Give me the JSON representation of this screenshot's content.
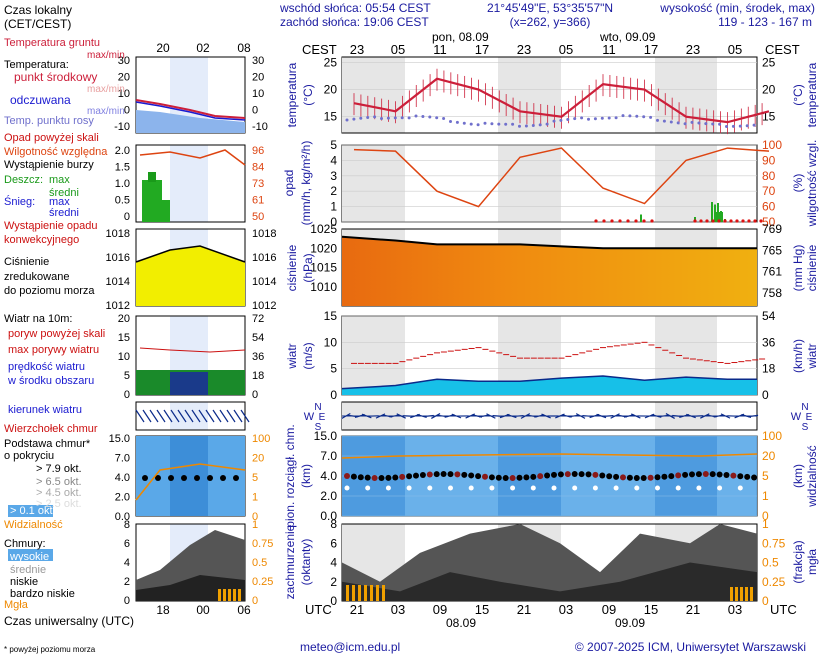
{
  "header": {
    "sunrise": "wschód słońca: 05:54 CEST",
    "sunset": "zachód słońca: 19:06 CEST",
    "coords": "21°45'49\"E, 53°35'57\"N",
    "grid": "(x=262, y=366)",
    "elev_label": "wysokość (min, środek, max)",
    "elev_value": "119 - 123 - 167 m"
  },
  "legend": {
    "local_time": "Czas lokalny",
    "local_tz": "(CET/CEST)",
    "ground_temp": "Temperatura gruntu",
    "maxmin": "max/min",
    "temp": "Temperatura:",
    "mid": "punkt środkowy",
    "maxmin2": "max/min",
    "feel": "odczuwana",
    "maxmin3": "max/min",
    "dew": "Temp. punktu rosy",
    "precip_above": "Opad powyżej skali",
    "humidity": "Wilgotność względna",
    "storm": "Wystąpienie burzy",
    "rain": "Deszcz:",
    "rain_max": "max",
    "rain_avg": "średni",
    "snow": "Śnieg:",
    "snow_max": "max",
    "snow_avg": "średni",
    "conv": "Wystąpienie opadu",
    "conv2": "konwekcyjnego",
    "pres1": "Ciśnienie",
    "pres2": "zredukowane",
    "pres3": "do poziomu morza",
    "wind": "Wiatr na 10m:",
    "gust_above": "poryw powyżej skali",
    "gust_max": "max porywy wiatru",
    "speed1": "prędkość wiatru",
    "speed2": "w środku obszaru",
    "dir": "kierunek wiatru",
    "ctop": "Wierzchołek chmur",
    "cbase": "Podstawa chmur*",
    "cbase2": "o pokryciu",
    "o79": "> 7.9 okt.",
    "o65": "> 6.5 okt.",
    "o45": "> 4.5 okt.",
    "o25": "> 2.5 okt.",
    "o01": "> 0.1 okt.",
    "vis": "Widzialność",
    "clouds": "Chmury:",
    "high": "wysokie",
    "medium": "średnie",
    "low": "niskie",
    "vlow": "bardzo niskie",
    "fog": "Mgła",
    "utc_label": "Czas uniwersalny (UTC)",
    "footnote": "* powyżej poziomu morza"
  },
  "legend_axes": {
    "time_top": [
      "20",
      "02",
      "08"
    ],
    "time_bottom": [
      "18",
      "00",
      "06"
    ],
    "temp_ticks": [
      "30",
      "20",
      "10",
      "0",
      "-10"
    ],
    "hum_left": [
      "2.0",
      "1.5",
      "1.0",
      "0.5",
      "0"
    ],
    "hum_right": [
      "96",
      "84",
      "73",
      "61",
      "50"
    ],
    "pres_ticks": [
      "1018",
      "1016",
      "1014",
      "1012"
    ],
    "wind_left": [
      "20",
      "15",
      "10",
      "5",
      "0"
    ],
    "wind_right": [
      "72",
      "54",
      "36",
      "18",
      "0"
    ],
    "cb_left": [
      "15.0",
      "7.0",
      "4.0",
      "2.0",
      "0.0"
    ],
    "cb_right": [
      "100",
      "20",
      "5",
      "1",
      "0"
    ],
    "cl_left": [
      "8",
      "6",
      "4",
      "2",
      "0"
    ],
    "cl_right": [
      "1",
      "0.75",
      "0.5",
      "0.25",
      "0"
    ]
  },
  "main": {
    "cest": "CEST",
    "utc": "UTC",
    "day1": "pon, 08.09",
    "day2": "wto, 09.09",
    "top_hours": [
      "23",
      "05",
      "11",
      "17",
      "23",
      "05",
      "11",
      "17",
      "23",
      "05"
    ],
    "bottom_hours": [
      "21",
      "03",
      "09",
      "15",
      "21",
      "03",
      "09",
      "15",
      "21",
      "03"
    ],
    "date1": "08.09",
    "date2": "09.09",
    "temp_label_l": "temperatura",
    "temp_unit_l": "(°C)",
    "temp_unit_r": "(°C)",
    "temp_label_r": "temperatura",
    "temp_ticks": [
      "25",
      "20",
      "15"
    ],
    "precip_label_l": "opad",
    "precip_unit_l": "(mm/h, kg/m²/h)",
    "precip_ticks": [
      "5",
      "4",
      "3",
      "2",
      "1",
      "0"
    ],
    "hum_label_r": "wilgotność wzgl.",
    "hum_unit_r": "(%)",
    "hum_ticks": [
      "100",
      "90",
      "80",
      "70",
      "60",
      "50"
    ],
    "pres_label_l": "ciśnienie",
    "pres_unit_l": "(hPa)",
    "pres_ticks": [
      "1025",
      "1020",
      "1015",
      "1010"
    ],
    "pres_label_r": "ciśnienie",
    "pres_unit_r": "(mm Hg)",
    "pres_ticks_r": [
      "769",
      "765",
      "761",
      "758"
    ],
    "wind_label_l": "wiatr",
    "wind_unit_l": "(m/s)",
    "wind_ticks": [
      "15",
      "10",
      "5",
      "0"
    ],
    "wind_label_r": "wiatr",
    "wind_unit_r": "(km/h)",
    "wind_ticks_r": [
      "54",
      "36",
      "18",
      "0"
    ],
    "compass_n": "N",
    "compass_w": "W",
    "compass_e": "E",
    "compass_s": "S",
    "cb_label_l1": "pion. rozciągł. chm.",
    "cb_label_l2": "(km)",
    "cb_ticks": [
      "15.0",
      "7.0",
      "4.0",
      "2.0",
      "0.0"
    ],
    "vis_label_r1": "widzialność",
    "vis_label_r2": "(km)",
    "vis_ticks": [
      "100",
      "20",
      "5",
      "1",
      "0"
    ],
    "cl_label_l1": "zachmurzenie",
    "cl_label_l2": "(oktanty)",
    "cl_ticks": [
      "8",
      "6",
      "4",
      "2",
      "0"
    ],
    "fog_label_r1": "mgła",
    "fog_label_r2": "(frakcja)",
    "fog_ticks": [
      "1",
      "0.75",
      "0.5",
      "0.25",
      "0"
    ]
  },
  "footer": {
    "email": "meteo@icm.edu.pl",
    "copyright": "© 2007-2025 ICM, Uniwersytet Warszawski"
  },
  "colors": {
    "temp": "#cc1f3a",
    "dew": "#7070cc",
    "humidity": "#dd4411",
    "rain": "#22aa22",
    "pressure_hi": "#e0a000",
    "wind": "#1a5fd0",
    "gust": "#cc1111",
    "night_band": "#e6e6e6",
    "vis": "#ee8800"
  },
  "chart_data": {
    "type": "line",
    "x_hours_utc": [
      0,
      6,
      12,
      18,
      24,
      30,
      36,
      42,
      48,
      54,
      60
    ],
    "series": [
      {
        "name": "temperatura",
        "values": [
          17.5,
          16,
          22,
          20,
          16,
          15,
          21,
          20,
          15,
          14,
          16
        ]
      },
      {
        "name": "ciśnienie",
        "values": [
          1023,
          1022,
          1021,
          1021,
          1021,
          1020.5,
          1020,
          1020,
          1020,
          1020,
          1020
        ]
      },
      {
        "name": "wilgotność wzgl.",
        "values": [
          97,
          96,
          70,
          60,
          92,
          98,
          72,
          62,
          90,
          98,
          96
        ]
      },
      {
        "name": "wiatr",
        "values": [
          1.2,
          1.8,
          3.0,
          2.6,
          2.6,
          3.2,
          3.6,
          2.8,
          3.4,
          3.0,
          3.0
        ]
      },
      {
        "name": "max porywy wiatru",
        "values": [
          6,
          6,
          8,
          9,
          7,
          7,
          9,
          10,
          7,
          6,
          7
        ]
      }
    ],
    "ylim_temp": [
      12,
      26
    ],
    "ylim_pres": [
      1005,
      1025
    ],
    "ylim_hum": [
      50,
      100
    ],
    "ylim_wind": [
      0,
      15
    ]
  }
}
